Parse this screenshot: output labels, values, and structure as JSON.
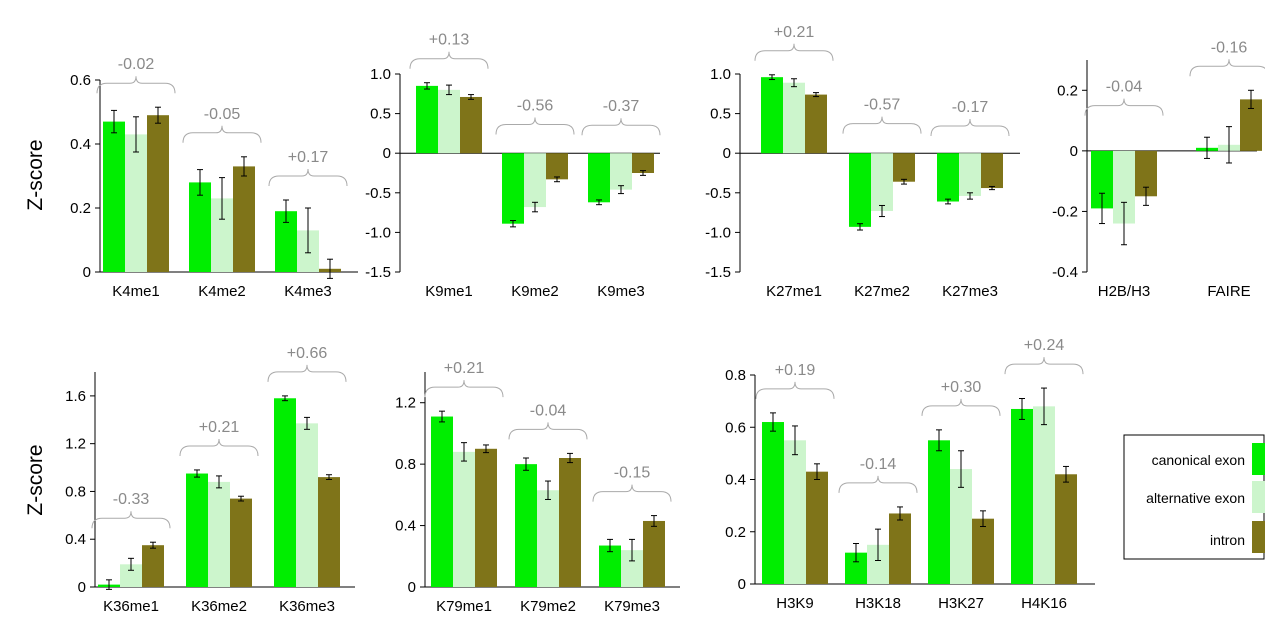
{
  "ylabel": "Z-score",
  "colors": {
    "canonical exon": "#00ee00",
    "alternative exon": "#ccf5cc",
    "intron": "#7f7419",
    "bracket": "#aaaaaa",
    "diff_text": "#8a8a8a"
  },
  "legend": {
    "placement": "bottom-right",
    "entries": [
      "canonical exon",
      "alternative exon",
      "intron"
    ]
  },
  "chart_data": [
    {
      "type": "bar",
      "ylim": [
        0,
        0.6
      ],
      "yticks": [
        "0",
        "0.2",
        "0.4",
        "0.6"
      ],
      "ylabel": "Z-score",
      "series_names": [
        "canonical exon",
        "alternative exon",
        "intron"
      ],
      "groups": [
        {
          "label": "K4me1",
          "values": [
            0.47,
            0.43,
            0.49
          ],
          "errors": [
            0.035,
            0.055,
            0.025
          ],
          "diff": "-0.02"
        },
        {
          "label": "K4me2",
          "values": [
            0.28,
            0.23,
            0.33
          ],
          "errors": [
            0.04,
            0.065,
            0.03
          ],
          "diff": "-0.05"
        },
        {
          "label": "K4me3",
          "values": [
            0.19,
            0.13,
            0.01
          ],
          "errors": [
            0.035,
            0.07,
            0.03
          ],
          "diff": "+0.17"
        }
      ]
    },
    {
      "type": "bar",
      "ylim": [
        -1.5,
        1.0
      ],
      "yticks": [
        "-1.5",
        "-1.0",
        "-0.5",
        "0",
        "0.5",
        "1.0"
      ],
      "ylabel": "",
      "series_names": [
        "canonical exon",
        "alternative exon",
        "intron"
      ],
      "groups": [
        {
          "label": "K9me1",
          "values": [
            0.85,
            0.8,
            0.71
          ],
          "errors": [
            0.04,
            0.06,
            0.03
          ],
          "diff": "+0.13"
        },
        {
          "label": "K9me2",
          "values": [
            -0.89,
            -0.68,
            -0.33
          ],
          "errors": [
            0.04,
            0.06,
            0.03
          ],
          "diff": "-0.56"
        },
        {
          "label": "K9me3",
          "values": [
            -0.62,
            -0.46,
            -0.25
          ],
          "errors": [
            0.03,
            0.05,
            0.03
          ],
          "diff": "-0.37"
        }
      ]
    },
    {
      "type": "bar",
      "ylim": [
        -1.5,
        1.0
      ],
      "yticks": [
        "-1.5",
        "-1.0",
        "-0.5",
        "0",
        "0.5",
        "1.0"
      ],
      "ylabel": "",
      "series_names": [
        "canonical exon",
        "alternative exon",
        "intron"
      ],
      "groups": [
        {
          "label": "K27me1",
          "values": [
            0.96,
            0.89,
            0.74
          ],
          "errors": [
            0.03,
            0.05,
            0.025
          ],
          "diff": "+0.21"
        },
        {
          "label": "K27me2",
          "values": [
            -0.93,
            -0.73,
            -0.36
          ],
          "errors": [
            0.04,
            0.07,
            0.03
          ],
          "diff": "-0.57"
        },
        {
          "label": "K27me3",
          "values": [
            -0.61,
            -0.54,
            -0.44
          ],
          "errors": [
            0.03,
            0.04,
            0.02
          ],
          "diff": "-0.17"
        }
      ]
    },
    {
      "type": "bar",
      "ylim": [
        -0.4,
        0.3
      ],
      "yticks": [
        "-0.4",
        "-0.2",
        "0",
        "0.2"
      ],
      "ylabel": "",
      "series_names": [
        "canonical exon",
        "alternative exon",
        "intron"
      ],
      "groups": [
        {
          "label": "H2B/H3",
          "values": [
            -0.19,
            -0.24,
            -0.15
          ],
          "errors": [
            0.05,
            0.07,
            0.03
          ],
          "diff": "-0.04"
        },
        {
          "label": "FAIRE",
          "values": [
            0.01,
            0.02,
            0.17
          ],
          "errors": [
            0.035,
            0.06,
            0.03
          ],
          "diff": "-0.16"
        }
      ]
    },
    {
      "type": "bar",
      "ylim": [
        0,
        1.8
      ],
      "yticks": [
        "0",
        "0.4",
        "0.8",
        "1.2",
        "1.6"
      ],
      "ylabel": "Z-score",
      "series_names": [
        "canonical exon",
        "alternative exon",
        "intron"
      ],
      "groups": [
        {
          "label": "K36me1",
          "values": [
            0.02,
            0.19,
            0.35
          ],
          "errors": [
            0.04,
            0.05,
            0.025
          ],
          "diff": "-0.33"
        },
        {
          "label": "K36me2",
          "values": [
            0.95,
            0.88,
            0.74
          ],
          "errors": [
            0.03,
            0.05,
            0.02
          ],
          "diff": "+0.21"
        },
        {
          "label": "K36me3",
          "values": [
            1.58,
            1.37,
            0.92
          ],
          "errors": [
            0.02,
            0.05,
            0.02
          ],
          "diff": "+0.66"
        }
      ]
    },
    {
      "type": "bar",
      "ylim": [
        0,
        1.4
      ],
      "yticks": [
        "0",
        "0.4",
        "0.8",
        "1.2"
      ],
      "ylabel": "",
      "series_names": [
        "canonical exon",
        "alternative exon",
        "intron"
      ],
      "groups": [
        {
          "label": "K79me1",
          "values": [
            1.11,
            0.88,
            0.9
          ],
          "errors": [
            0.035,
            0.06,
            0.025
          ],
          "diff": "+0.21"
        },
        {
          "label": "K79me2",
          "values": [
            0.8,
            0.63,
            0.84
          ],
          "errors": [
            0.04,
            0.06,
            0.03
          ],
          "diff": "-0.04"
        },
        {
          "label": "K79me3",
          "values": [
            0.27,
            0.24,
            0.43
          ],
          "errors": [
            0.04,
            0.07,
            0.035
          ],
          "diff": "-0.15"
        }
      ]
    },
    {
      "type": "bar",
      "ylim": [
        0,
        0.8
      ],
      "yticks": [
        "0",
        "0.2",
        "0.4",
        "0.6",
        "0.8"
      ],
      "ylabel": "",
      "series_names": [
        "canonical exon",
        "alternative exon",
        "intron"
      ],
      "groups": [
        {
          "label": "H3K9",
          "values": [
            0.62,
            0.55,
            0.43
          ],
          "errors": [
            0.035,
            0.055,
            0.03
          ],
          "diff": "+0.19"
        },
        {
          "label": "H3K18",
          "values": [
            0.12,
            0.15,
            0.27
          ],
          "errors": [
            0.035,
            0.06,
            0.025
          ],
          "diff": "-0.14"
        },
        {
          "label": "H3K27",
          "values": [
            0.55,
            0.44,
            0.25
          ],
          "errors": [
            0.04,
            0.07,
            0.03
          ],
          "diff": "+0.30"
        },
        {
          "label": "H4K16",
          "values": [
            0.67,
            0.68,
            0.42
          ],
          "errors": [
            0.04,
            0.07,
            0.03
          ],
          "diff": "+0.24"
        }
      ]
    }
  ]
}
